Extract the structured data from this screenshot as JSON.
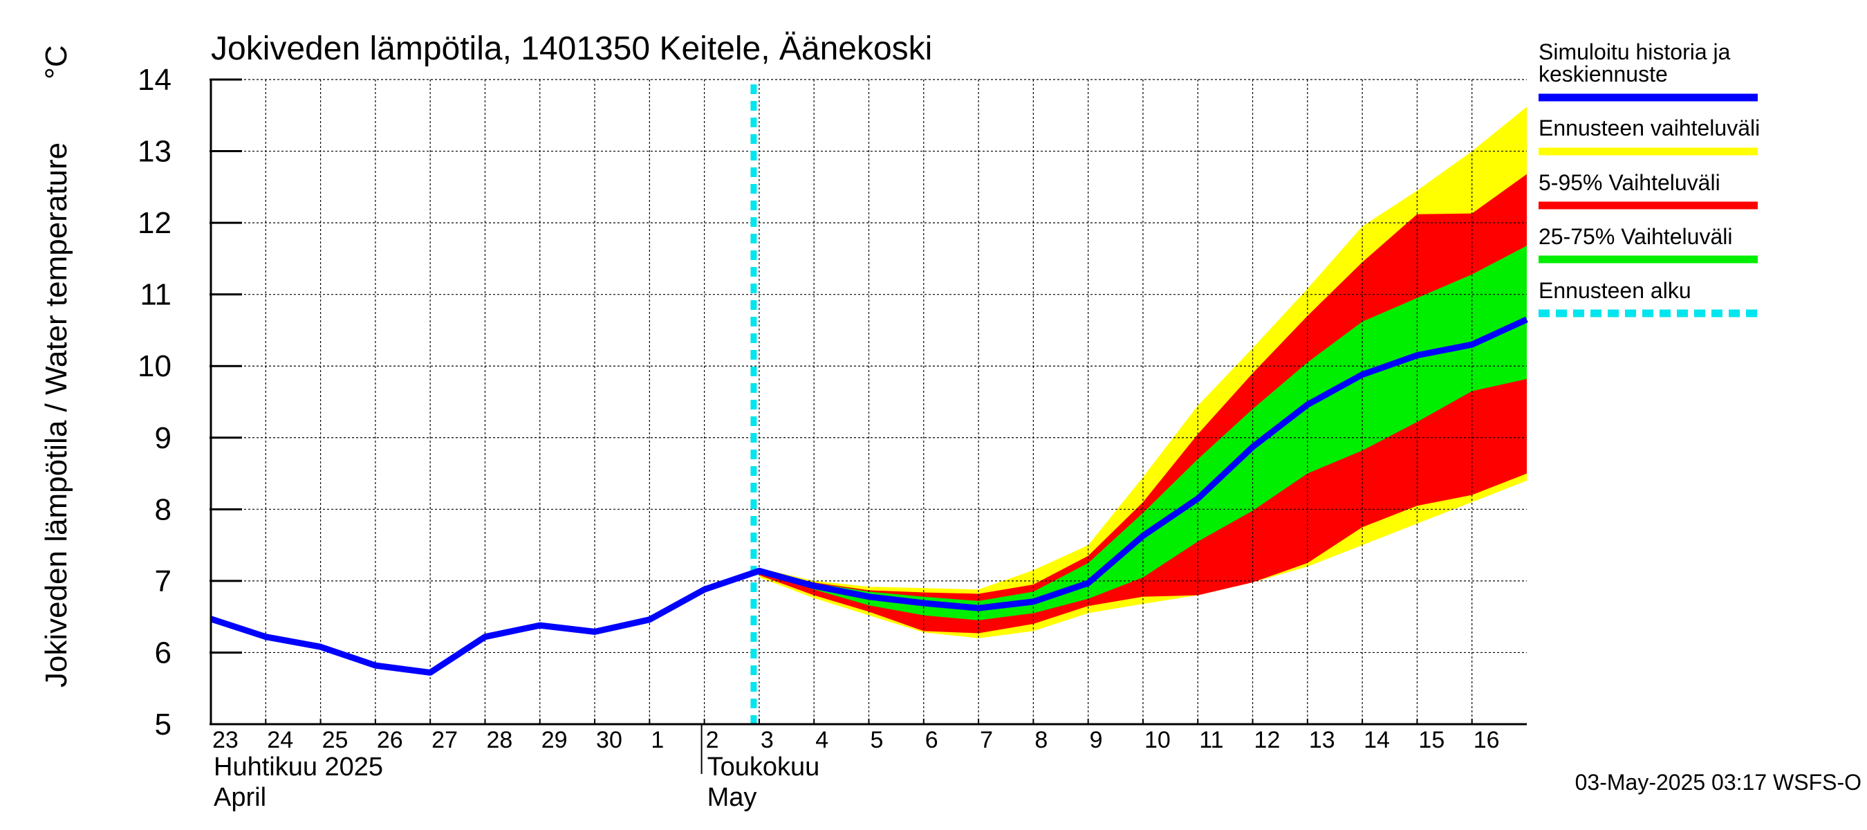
{
  "chart_data": {
    "type": "line",
    "title": "Jokiveden lämpötila, 1401350 Keitele, Äänekoski",
    "ylabel": "Jokiveden lämpötila / Water temperature",
    "yunit": "°C",
    "ylim": [
      5,
      14
    ],
    "yticks": [
      "5",
      "6",
      "7",
      "8",
      "9",
      "10",
      "11",
      "12",
      "13",
      "14"
    ],
    "x_range": [
      "2025-04-23",
      "2025-05-17"
    ],
    "day_labels": [
      "23",
      "24",
      "25",
      "26",
      "27",
      "28",
      "29",
      "30",
      "1",
      "2",
      "3",
      "4",
      "5",
      "6",
      "7",
      "8",
      "9",
      "10",
      "11",
      "12",
      "13",
      "14",
      "15",
      "16"
    ],
    "month_labels": [
      {
        "fi": "Huhtikuu  2025",
        "en": "April",
        "start": "2025-04-23"
      },
      {
        "fi": "Toukokuu",
        "en": "May",
        "start": "2025-05-02"
      }
    ],
    "grid": true,
    "forecast_start": "2025-05-03",
    "series": [
      {
        "name": "Simuloitu historia ja keskiennuste",
        "color": "#0000ff",
        "x": [
          "2025-04-23",
          "2025-04-24",
          "2025-04-25",
          "2025-04-26",
          "2025-04-27",
          "2025-04-28",
          "2025-04-29",
          "2025-04-30",
          "2025-05-01",
          "2025-05-02",
          "2025-05-03",
          "2025-05-04",
          "2025-05-05",
          "2025-05-06",
          "2025-05-07",
          "2025-05-08",
          "2025-05-09",
          "2025-05-10",
          "2025-05-11",
          "2025-05-12",
          "2025-05-13",
          "2025-05-14",
          "2025-05-15",
          "2025-05-16",
          "2025-05-17"
        ],
        "y": [
          6.47,
          6.22,
          6.08,
          5.82,
          5.72,
          6.22,
          6.38,
          6.29,
          6.46,
          6.88,
          7.14,
          6.93,
          6.78,
          6.69,
          6.62,
          6.71,
          6.97,
          7.63,
          8.15,
          8.87,
          9.46,
          9.88,
          10.15,
          10.3,
          10.65
        ]
      }
    ],
    "bands": [
      {
        "name": "Ennusteen vaihteluväli",
        "color": "#ffff00",
        "x": [
          "2025-05-03",
          "2025-05-04",
          "2025-05-05",
          "2025-05-06",
          "2025-05-07",
          "2025-05-08",
          "2025-05-09",
          "2025-05-10",
          "2025-05-11",
          "2025-05-12",
          "2025-05-13",
          "2025-05-14",
          "2025-05-15",
          "2025-05-16",
          "2025-05-17"
        ],
        "upper": [
          7.18,
          7.0,
          6.92,
          6.9,
          6.88,
          7.15,
          7.5,
          8.45,
          9.45,
          10.25,
          11.08,
          11.95,
          12.45,
          13.0,
          13.62
        ],
        "lower": [
          7.05,
          6.76,
          6.52,
          6.28,
          6.2,
          6.3,
          6.55,
          6.68,
          6.8,
          6.98,
          7.2,
          7.5,
          7.8,
          8.1,
          8.4
        ]
      },
      {
        "name": "5-95% Vaihteluväli",
        "color": "#ff0000",
        "x": [
          "2025-05-03",
          "2025-05-04",
          "2025-05-05",
          "2025-05-06",
          "2025-05-07",
          "2025-05-08",
          "2025-05-09",
          "2025-05-10",
          "2025-05-11",
          "2025-05-12",
          "2025-05-13",
          "2025-05-14",
          "2025-05-15",
          "2025-05-16",
          "2025-05-17"
        ],
        "upper": [
          7.16,
          6.98,
          6.87,
          6.84,
          6.82,
          6.95,
          7.35,
          8.1,
          9.05,
          9.9,
          10.7,
          11.45,
          12.12,
          12.13,
          12.68
        ],
        "lower": [
          7.08,
          6.8,
          6.57,
          6.3,
          6.27,
          6.4,
          6.65,
          6.78,
          6.8,
          6.98,
          7.25,
          7.75,
          8.05,
          8.2,
          8.5
        ]
      },
      {
        "name": "25-75% Vaihteluväli",
        "color": "#00ee00",
        "x": [
          "2025-05-03",
          "2025-05-04",
          "2025-05-05",
          "2025-05-06",
          "2025-05-07",
          "2025-05-08",
          "2025-05-09",
          "2025-05-10",
          "2025-05-11",
          "2025-05-12",
          "2025-05-13",
          "2025-05-14",
          "2025-05-15",
          "2025-05-16",
          "2025-05-17"
        ],
        "upper": [
          7.15,
          6.97,
          6.85,
          6.78,
          6.72,
          6.85,
          7.25,
          7.95,
          8.7,
          9.4,
          10.05,
          10.62,
          10.95,
          11.28,
          11.68
        ],
        "lower": [
          7.12,
          6.88,
          6.66,
          6.52,
          6.45,
          6.55,
          6.75,
          7.05,
          7.55,
          7.98,
          8.5,
          8.82,
          9.22,
          9.65,
          9.82
        ]
      }
    ],
    "legend": {
      "placement": "right",
      "items": [
        {
          "label": "Simuloitu historia ja keskiennuste",
          "color": "#0000ff",
          "style": "solid"
        },
        {
          "label": "Ennusteen vaihteluväli",
          "color": "#ffff00",
          "style": "solid"
        },
        {
          "label": "5-95% Vaihteluväli",
          "color": "#ff0000",
          "style": "solid"
        },
        {
          "label": "25-75% Vaihteluväli",
          "color": "#00ee00",
          "style": "solid"
        },
        {
          "label": "Ennusteen alku",
          "color": "#00e5ee",
          "style": "dashed"
        }
      ]
    },
    "footer": "03-May-2025 03:17 WSFS-O"
  }
}
